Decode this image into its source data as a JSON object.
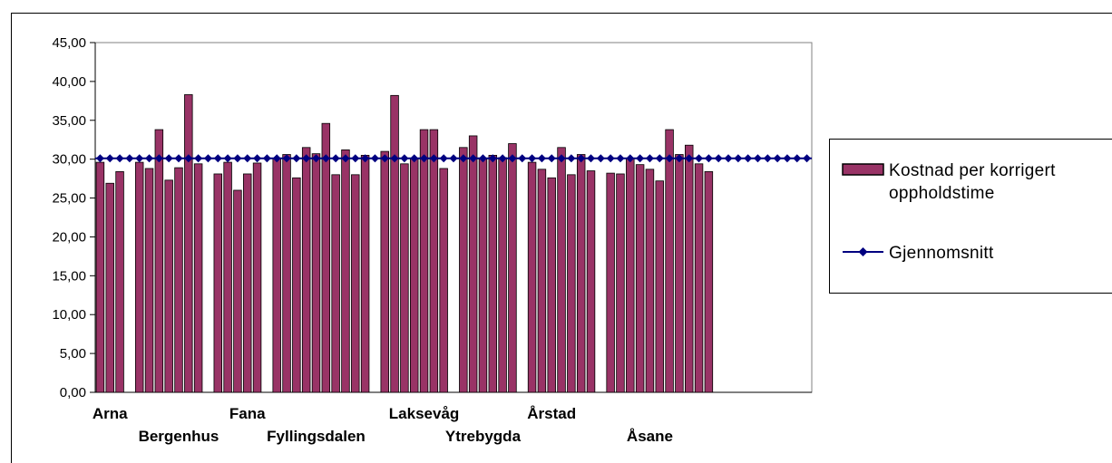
{
  "chart_data": {
    "type": "bar",
    "title": "",
    "xlabel": "",
    "ylabel": "",
    "ylim": [
      0,
      45
    ],
    "y_tick_step": 5,
    "y_tick_labels": [
      "0,00",
      "5,00",
      "10,00",
      "15,00",
      "20,00",
      "25,00",
      "30,00",
      "35,00",
      "40,00",
      "45,00"
    ],
    "grid": false,
    "legend_position": "right",
    "colors": {
      "bar": "#993366",
      "average": "#000080",
      "frame": "#000000",
      "plot_border": "#808080"
    },
    "slot_count": 73,
    "category_labels": [
      {
        "text": "Arna",
        "slot": 1,
        "row": 1
      },
      {
        "text": "Bergenhus",
        "slot": 8,
        "row": 2
      },
      {
        "text": "Fana",
        "slot": 15,
        "row": 1
      },
      {
        "text": "Fyllingsdalen",
        "slot": 22,
        "row": 2
      },
      {
        "text": "Laksevåg",
        "slot": 33,
        "row": 1
      },
      {
        "text": "Ytrebygda",
        "slot": 39,
        "row": 2
      },
      {
        "text": "Årstad",
        "slot": 46,
        "row": 1
      },
      {
        "text": "Åsane",
        "slot": 56,
        "row": 2
      }
    ],
    "series": [
      {
        "name": "Kostnad per korrigert oppholdstime",
        "legend_lines": [
          "Kostnad per korrigert",
          "oppholdstime"
        ],
        "type": "bar",
        "points": [
          {
            "slot": 0,
            "value": 29.6
          },
          {
            "slot": 1,
            "value": 26.9
          },
          {
            "slot": 2,
            "value": 28.4
          },
          {
            "slot": 4,
            "value": 29.6
          },
          {
            "slot": 5,
            "value": 28.8
          },
          {
            "slot": 6,
            "value": 33.8
          },
          {
            "slot": 7,
            "value": 27.3
          },
          {
            "slot": 8,
            "value": 28.9
          },
          {
            "slot": 9,
            "value": 38.3
          },
          {
            "slot": 10,
            "value": 29.4
          },
          {
            "slot": 12,
            "value": 28.1
          },
          {
            "slot": 13,
            "value": 29.6
          },
          {
            "slot": 14,
            "value": 26.0
          },
          {
            "slot": 15,
            "value": 28.1
          },
          {
            "slot": 16,
            "value": 29.5
          },
          {
            "slot": 18,
            "value": 30.1
          },
          {
            "slot": 19,
            "value": 30.6
          },
          {
            "slot": 20,
            "value": 27.6
          },
          {
            "slot": 21,
            "value": 31.5
          },
          {
            "slot": 22,
            "value": 30.7
          },
          {
            "slot": 23,
            "value": 34.6
          },
          {
            "slot": 24,
            "value": 28.0
          },
          {
            "slot": 25,
            "value": 31.2
          },
          {
            "slot": 26,
            "value": 28.0
          },
          {
            "slot": 27,
            "value": 30.5
          },
          {
            "slot": 29,
            "value": 31.0
          },
          {
            "slot": 30,
            "value": 38.2
          },
          {
            "slot": 31,
            "value": 29.4
          },
          {
            "slot": 32,
            "value": 30.1
          },
          {
            "slot": 33,
            "value": 33.8
          },
          {
            "slot": 34,
            "value": 33.8
          },
          {
            "slot": 35,
            "value": 28.8
          },
          {
            "slot": 37,
            "value": 31.5
          },
          {
            "slot": 38,
            "value": 33.0
          },
          {
            "slot": 39,
            "value": 30.0
          },
          {
            "slot": 40,
            "value": 30.5
          },
          {
            "slot": 41,
            "value": 30.2
          },
          {
            "slot": 42,
            "value": 32.0
          },
          {
            "slot": 44,
            "value": 29.6
          },
          {
            "slot": 45,
            "value": 28.7
          },
          {
            "slot": 46,
            "value": 27.6
          },
          {
            "slot": 47,
            "value": 31.5
          },
          {
            "slot": 48,
            "value": 28.0
          },
          {
            "slot": 49,
            "value": 30.6
          },
          {
            "slot": 50,
            "value": 28.5
          },
          {
            "slot": 52,
            "value": 28.2
          },
          {
            "slot": 53,
            "value": 28.1
          },
          {
            "slot": 54,
            "value": 30.1
          },
          {
            "slot": 55,
            "value": 29.3
          },
          {
            "slot": 56,
            "value": 28.7
          },
          {
            "slot": 57,
            "value": 27.2
          },
          {
            "slot": 58,
            "value": 33.8
          },
          {
            "slot": 59,
            "value": 30.6
          },
          {
            "slot": 60,
            "value": 31.8
          },
          {
            "slot": 61,
            "value": 29.4
          },
          {
            "slot": 62,
            "value": 28.4
          }
        ]
      },
      {
        "name": "Gjennomsnitt",
        "legend_lines": [
          "Gjennomsnitt"
        ],
        "type": "line",
        "value": 30.1,
        "marker": "diamond"
      }
    ]
  }
}
